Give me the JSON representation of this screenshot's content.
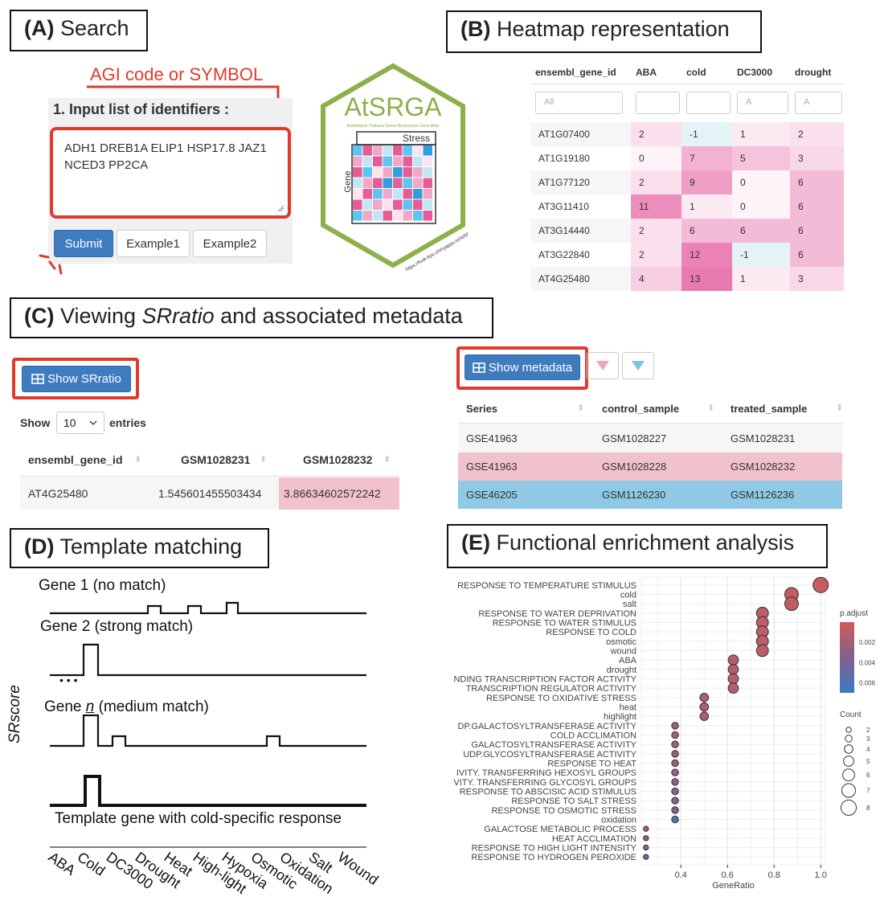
{
  "panel_a": {
    "title_letter": "(A)",
    "title_text": " Search",
    "annotation": "AGI code or SYMBOL",
    "input_label": "1. Input list of identifiers :",
    "textarea_value": "ADH1 DREB1A ELIP1 HSP17.8 JAZ1 NCED3 PP2CA",
    "submit_label": "Submit",
    "example1_label": "Example1",
    "example2_label": "Example2"
  },
  "logo": {
    "name": "AtSRGA",
    "subtitle": "Arabidopsis Thaliana Stress Responsive Gene Atlas",
    "stress_label": "Stress",
    "gene_label": "Gene",
    "url": "https://fusk-kpu.shinyapps.io/AtSRGA/"
  },
  "panel_b": {
    "title_letter": "(B)",
    "title_text": " Heatmap representation",
    "columns": [
      "ensembl_gene_id",
      "ABA",
      "cold",
      "DC3000",
      "drought"
    ],
    "filters": [
      "All",
      "",
      "",
      "A",
      "A"
    ],
    "rows": [
      {
        "id": "AT1G07400",
        "values": [
          "2",
          "-1",
          "1",
          "2"
        ]
      },
      {
        "id": "AT1G19180",
        "values": [
          "0",
          "7",
          "5",
          "3"
        ]
      },
      {
        "id": "AT1G77120",
        "values": [
          "2",
          "9",
          "0",
          "6"
        ]
      },
      {
        "id": "AT3G11410",
        "values": [
          "11",
          "1",
          "0",
          "6"
        ]
      },
      {
        "id": "AT3G14440",
        "values": [
          "2",
          "6",
          "6",
          "6"
        ]
      },
      {
        "id": "AT3G22840",
        "values": [
          "2",
          "12",
          "-1",
          "6"
        ]
      },
      {
        "id": "AT4G25480",
        "values": [
          "4",
          "13",
          "1",
          "3"
        ]
      }
    ]
  },
  "panel_c": {
    "title_letter": "(C)",
    "title_pre": " Viewing ",
    "title_italic": "SRratio",
    "title_post": " and associated metadata",
    "show_srratio_label": "Show SRratio",
    "show_label": "Show",
    "entries_value": "10",
    "entries_label": "entries",
    "srratio_columns": [
      "ensembl_gene_id",
      "GSM1028231",
      "GSM1028232"
    ],
    "srratio_row": [
      "AT4G25480",
      "1.545601455503434",
      "3.86634602572242"
    ],
    "show_metadata_label": "Show metadata",
    "meta_columns": [
      "Series",
      "control_sample",
      "treated_sample"
    ],
    "meta_rows": [
      [
        "GSE41963",
        "GSM1028227",
        "GSM1028231"
      ],
      [
        "GSE41963",
        "GSM1028228",
        "GSM1028232"
      ],
      [
        "GSE46205",
        "GSM1126230",
        "GSM1126236"
      ]
    ]
  },
  "panel_d": {
    "title_letter": "(D)",
    "title_text": " Template matching",
    "gene1": "Gene 1 (no match)",
    "gene2": "Gene 2 (strong match)",
    "ellipsis": "• • •",
    "genen_pre": "Gene ",
    "genen_italic": "n",
    "genen_post": " (medium match)",
    "template_label": "Template gene with cold-specific response",
    "y_label": "SRscore",
    "conditions": [
      "ABA",
      "Cold",
      "DC3000",
      "Drought",
      "Heat",
      "High-light",
      "Hypoxia",
      "Osmotic",
      "Oxidation",
      "Salt",
      "Wound"
    ]
  },
  "panel_e": {
    "title_letter": "(E)",
    "title_text": " Functional enrichment analysis",
    "legend_padj_title": "p.adjust",
    "legend_padj_ticks": [
      "0.002",
      "0.004",
      "0.006"
    ],
    "legend_count_title": "Count",
    "legend_count_values": [
      "2",
      "3",
      "4",
      "5",
      "6",
      "7",
      "8"
    ]
  },
  "chart_data": {
    "type": "scatter",
    "xlabel": "GeneRatio",
    "xticks": [
      "0.4",
      "0.6",
      "0.8",
      "1.0"
    ],
    "xlim": [
      0.23,
      1.02
    ],
    "terms": [
      "RESPONSE TO TEMPERATURE STIMULUS",
      "cold",
      "salt",
      "RESPONSE TO WATER DEPRIVATION",
      "RESPONSE TO WATER STIMULUS",
      "RESPONSE TO COLD",
      "osmotic",
      "wound",
      "ABA",
      "drought",
      "NDING TRANSCRIPTION FACTOR ACTIVITY",
      "TRANSCRIPTION REGULATOR ACTIVITY",
      "RESPONSE TO OXIDATIVE STRESS",
      "heat",
      "highlight",
      "DP.GALACTOSYLTRANSFERASE ACTIVITY",
      "COLD ACCLIMATION",
      "GALACTOSYLTRANSFERASE ACTIVITY",
      "UDP.GLYCOSYLTRANSFERASE ACTIVITY",
      "RESPONSE TO HEAT",
      "IVITY. TRANSFERRING HEXOSYL GROUPS",
      "VITY. TRANSFERRING GLYCOSYL GROUPS",
      "RESPONSE TO ABSCISIC ACID STIMULUS",
      "RESPONSE TO SALT STRESS",
      "RESPONSE TO OSMOTIC STRESS",
      "oxidation",
      "GALACTOSE METABOLIC PROCESS",
      "HEAT ACCLIMATION",
      "RESPONSE TO HIGH LIGHT INTENSITY",
      "RESPONSE TO HYDROGEN PEROXIDE"
    ],
    "gene_ratio": [
      1.0,
      0.875,
      0.875,
      0.75,
      0.75,
      0.75,
      0.75,
      0.75,
      0.625,
      0.625,
      0.625,
      0.625,
      0.5,
      0.5,
      0.5,
      0.375,
      0.375,
      0.375,
      0.375,
      0.375,
      0.375,
      0.375,
      0.375,
      0.375,
      0.375,
      0.375,
      0.25,
      0.25,
      0.25,
      0.25
    ],
    "count": [
      8,
      7,
      7,
      6,
      6,
      6,
      6,
      6,
      5,
      5,
      5,
      5,
      4,
      4,
      4,
      3,
      3,
      3,
      3,
      3,
      3,
      3,
      3,
      3,
      3,
      3,
      2,
      2,
      2,
      2
    ],
    "p_adjust": [
      0.0003,
      0.0005,
      0.0005,
      0.0008,
      0.0008,
      0.0008,
      0.0008,
      0.0008,
      0.0012,
      0.0012,
      0.0012,
      0.0012,
      0.0015,
      0.0015,
      0.0015,
      0.002,
      0.002,
      0.0022,
      0.0025,
      0.0025,
      0.0028,
      0.003,
      0.0032,
      0.0035,
      0.004,
      0.0055,
      0.002,
      0.003,
      0.0045,
      0.006
    ],
    "padj_range": [
      0.0,
      0.007
    ]
  },
  "colors": {
    "accent_red": "#e03a2f",
    "button_blue": "#3f7bbf",
    "logo_green": "#8db04a",
    "pink_row": "#f2c2cc",
    "blue_row": "#8fc9e6"
  }
}
